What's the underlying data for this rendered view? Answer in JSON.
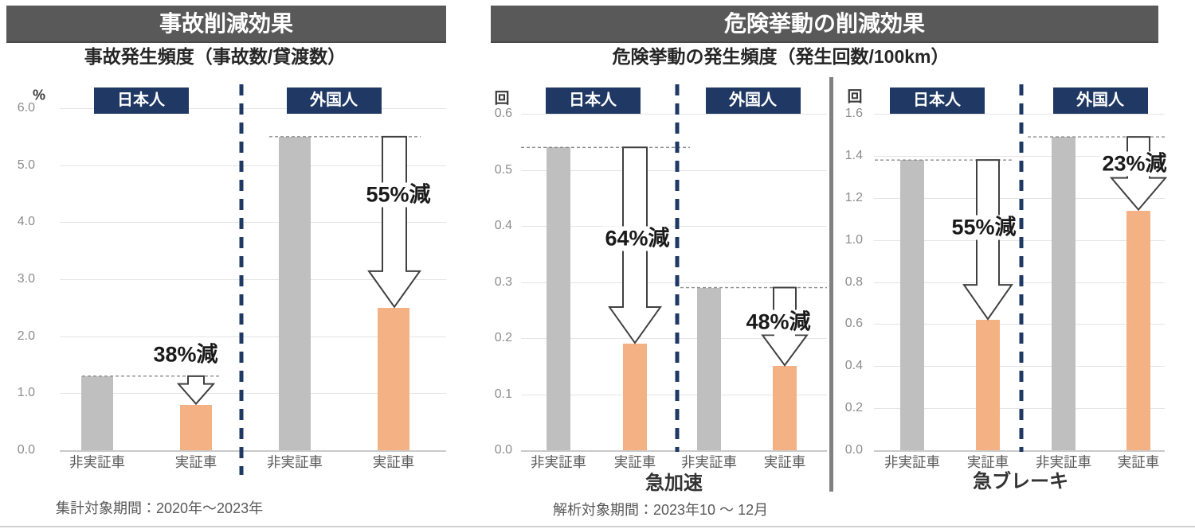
{
  "left_panel": {
    "header": "事故削減効果",
    "chart_title": "事故発生頻度（事故数/貸渡数）",
    "footnote": "集計対象期間：2020年～2023年"
  },
  "right_panel": {
    "header": "危険挙動の削減効果",
    "chart_title": "危険挙動の発生頻度（発生回数/100km）",
    "footnote": "解析対象期間：2023年10 ～ 12月"
  },
  "colors": {
    "header_bg": "#595959",
    "header_text": "#ffffff",
    "badge_bg": "#1f3864",
    "badge_text": "#ffffff",
    "bar_gray": "#bfbfbf",
    "bar_orange": "#f4b183",
    "gridline": "#e4e4e4",
    "axis_line": "#c9c9c9",
    "tick_text": "#8c8c8c",
    "category_text": "#595959",
    "reduction_text": "#1a1a1a",
    "arrow_outline": "#404040",
    "arrow_fill": "#ffffff",
    "ref_line": "#8c8c8c",
    "separator_navy": "#1f3864",
    "divider_gray": "#808080"
  },
  "chart_data": [
    {
      "id": "accident-frequency",
      "type": "bar",
      "title": "事故発生頻度（事故数/貸渡数）",
      "unit": "%",
      "ylabel": "%",
      "xlabel": "",
      "ylim": [
        0,
        6
      ],
      "yticks": [
        "0.0",
        "1.0",
        "2.0",
        "3.0",
        "4.0",
        "5.0",
        "6.0"
      ],
      "grid": "on",
      "legend": "none",
      "series_names": [
        "非実証車",
        "実証車"
      ],
      "groups": [
        {
          "label": "日本人",
          "bars": [
            {
              "category": "非実証車",
              "value": 1.3
            },
            {
              "category": "実証車",
              "value": 0.8
            }
          ],
          "reduction_label": "38%減"
        },
        {
          "label": "外国人",
          "bars": [
            {
              "category": "非実証車",
              "value": 5.5
            },
            {
              "category": "実証車",
              "value": 2.5
            }
          ],
          "reduction_label": "55%減"
        }
      ]
    },
    {
      "id": "sudden-acceleration",
      "type": "bar",
      "title": "危険挙動の発生頻度（発生回数/100km）",
      "unit": "回",
      "ylabel": "回",
      "xlabel": "急加速",
      "ylim": [
        0,
        0.6
      ],
      "yticks": [
        "0.0",
        "0.1",
        "0.2",
        "0.3",
        "0.4",
        "0.5",
        "0.6"
      ],
      "grid": "on",
      "legend": "none",
      "series_names": [
        "非実証車",
        "実証車"
      ],
      "groups": [
        {
          "label": "日本人",
          "bars": [
            {
              "category": "非実証車",
              "value": 0.54
            },
            {
              "category": "実証車",
              "value": 0.19
            }
          ],
          "reduction_label": "64%減"
        },
        {
          "label": "外国人",
          "bars": [
            {
              "category": "非実証車",
              "value": 0.29
            },
            {
              "category": "実証車",
              "value": 0.15
            }
          ],
          "reduction_label": "48%減"
        }
      ]
    },
    {
      "id": "sudden-braking",
      "type": "bar",
      "title": "危険挙動の発生頻度（発生回数/100km）",
      "unit": "回",
      "ylabel": "回",
      "xlabel": "急ブレーキ",
      "ylim": [
        0,
        1.6
      ],
      "yticks": [
        "0.0",
        "0.2",
        "0.4",
        "0.6",
        "0.8",
        "1.0",
        "1.2",
        "1.4",
        "1.6"
      ],
      "grid": "on",
      "legend": "none",
      "series_names": [
        "非実証車",
        "実証車"
      ],
      "groups": [
        {
          "label": "日本人",
          "bars": [
            {
              "category": "非実証車",
              "value": 1.38
            },
            {
              "category": "実証車",
              "value": 0.62
            }
          ],
          "reduction_label": "55%減"
        },
        {
          "label": "外国人",
          "bars": [
            {
              "category": "非実証車",
              "value": 1.49
            },
            {
              "category": "実証車",
              "value": 1.14
            }
          ],
          "reduction_label": "23%減"
        }
      ]
    }
  ]
}
